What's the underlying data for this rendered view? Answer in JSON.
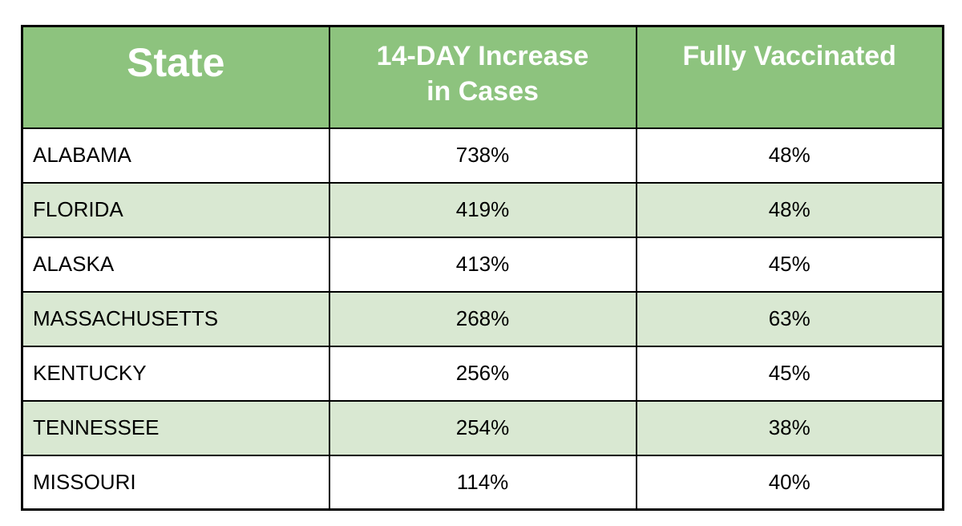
{
  "chart_data": {
    "type": "table",
    "columns": [
      "State",
      "14-DAY Increase\nin Cases",
      "Fully Vaccinated"
    ],
    "rows": [
      [
        "ALABAMA",
        "738%",
        "48%"
      ],
      [
        "FLORIDA",
        "419%",
        "48%"
      ],
      [
        "ALASKA",
        "413%",
        "45%"
      ],
      [
        "MASSACHUSETTS",
        "268%",
        "63%"
      ],
      [
        "KENTUCKY",
        "256%",
        "45%"
      ],
      [
        "TENNESSEE",
        "254%",
        "38%"
      ],
      [
        "MISSOURI",
        "114%",
        "40%"
      ]
    ]
  },
  "colors": {
    "header_bg": "#8dc37e",
    "header_text": "#ffffff",
    "row_bg": "#ffffff",
    "row_alt_bg": "#d9e8d2",
    "border": "#000000",
    "body_text": "#000000"
  }
}
